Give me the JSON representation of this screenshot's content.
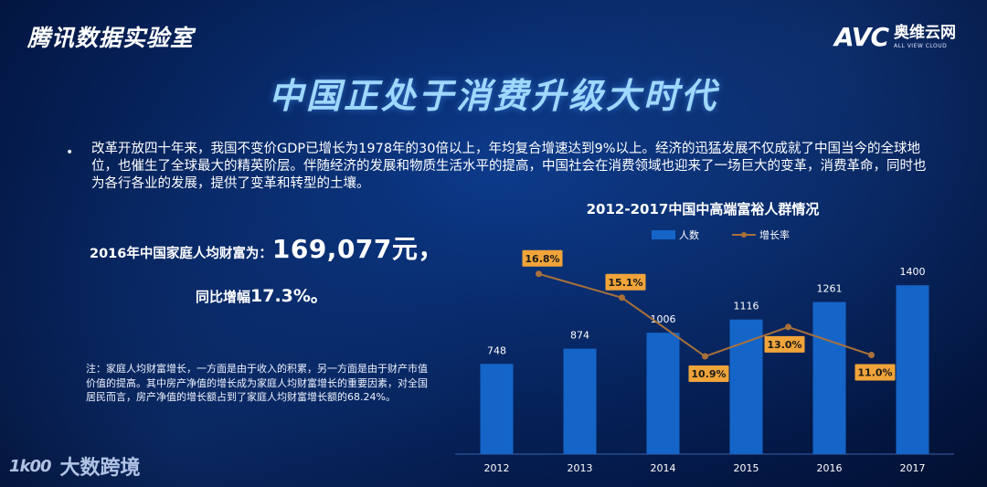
{
  "header": {
    "brand_left": "腾讯数据实验室",
    "logo_avc": "AVC",
    "logo_cn": "奥维云网",
    "logo_en": "ALL VIEW CLOUD"
  },
  "main": {
    "title": "中国正处于消费升级大时代",
    "bullet": "•",
    "intro": "改革开放四十年来，我国不变价GDP已增长为1978年的30倍以上，年均复合增速达到9%以上。经济的迅猛发展不仅成就了中国当今的全球地位，也催生了全球最大的精英阶层。伴随经济的发展和物质生活水平的提高，中国社会在消费领域也迎来了一场巨大的变革，消费革命，同时也为各行各业的发展，提供了变革和转型的土壤。",
    "wealth_label": "2016年中国家庭人均财富为：",
    "wealth_value": "169,077元，",
    "growth_label": "同比增幅",
    "growth_value": "17.3%。",
    "note": "注：家庭人均财富增长，一方面是由于收入的积累，另一方面是由于财产市值价值的提高。其中房产净值的增长成为家庭人均财富增长的重要因素，对全国居民而言，房产净值的增长额占到了家庭人均财富增长额的68.24%。"
  },
  "footer": {
    "mark": "1k00",
    "text": "大数跨境"
  },
  "colors": {
    "bar": "#1565c8",
    "line": "#a8713a",
    "marker": "#a8713a",
    "label_box": "#f0a43a",
    "title_glow": "#9fd8ff"
  },
  "chart_data": {
    "type": "bar",
    "title": "2012-2017中国中高端富裕人群情况",
    "categories": [
      "2012",
      "2013",
      "2014",
      "2015",
      "2016",
      "2017"
    ],
    "series": [
      {
        "name": "人数",
        "type": "bar",
        "values": [
          748,
          874,
          1006,
          1116,
          1261,
          1400
        ],
        "labels": [
          "748",
          "874",
          "1006",
          "1116",
          "1261",
          "1400"
        ]
      },
      {
        "name": "增长率",
        "type": "line",
        "values": [
          16.8,
          15.1,
          10.9,
          13.0,
          11.0
        ],
        "x": [
          "2013",
          "2014",
          "2015",
          "2016",
          "2017"
        ],
        "labels": [
          "16.8%",
          "15.1%",
          "10.9%",
          "13.0%",
          "11.0%"
        ]
      }
    ],
    "legend": "top",
    "grid": false
  }
}
